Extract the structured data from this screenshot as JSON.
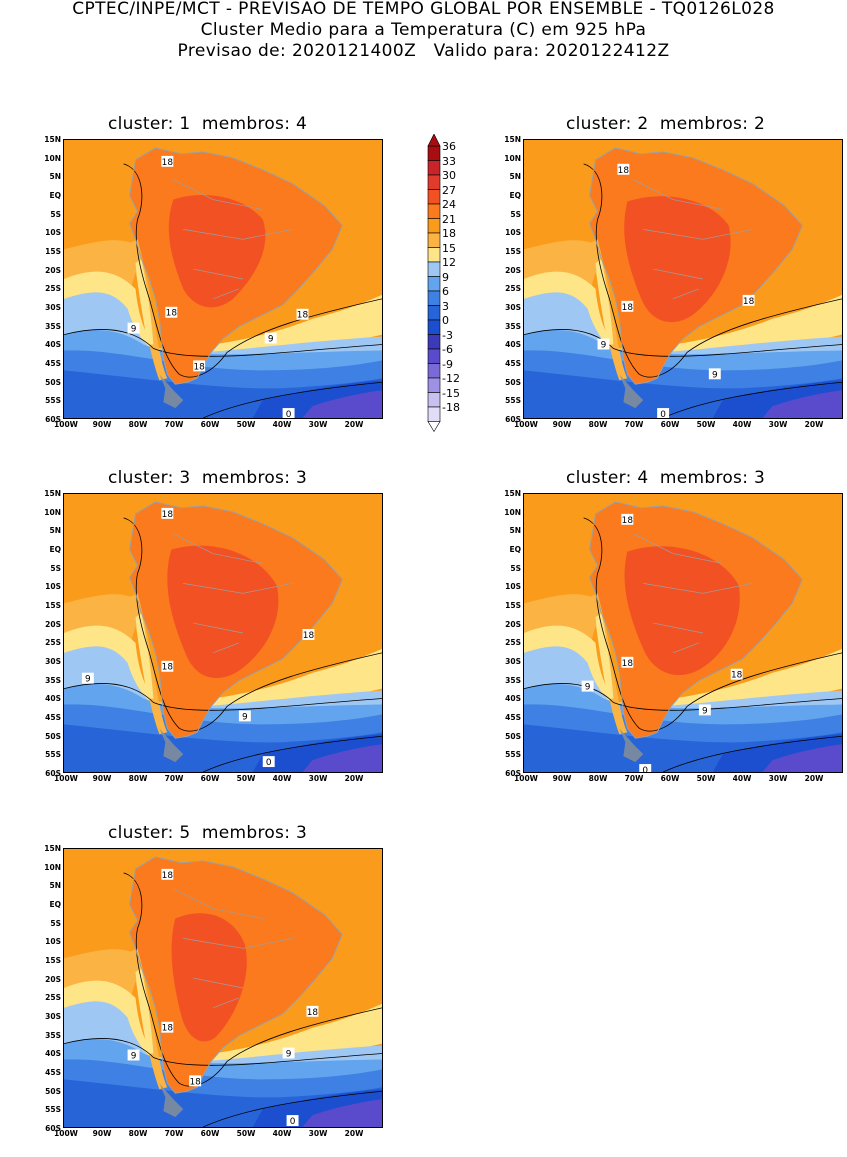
{
  "header": {
    "line1": "CPTEC/INPE/MCT - PREVISAO DE TEMPO GLOBAL POR ENSEMBLE - TQ0126L028",
    "line2": "Cluster Medio para a Temperatura (C) em 925 hPa",
    "line3": "Previsao de: 2020121400Z   Valido para: 2020122412Z"
  },
  "panels": [
    {
      "title": "cluster: 1  membros: 4",
      "contour_labels": [
        "18",
        "18",
        "18",
        "9",
        "9",
        "18",
        "0"
      ]
    },
    {
      "title": "cluster: 2  membros: 2",
      "contour_labels": [
        "18",
        "18",
        "18",
        "9",
        "9",
        "0"
      ]
    },
    {
      "title": "cluster: 3  membros: 3",
      "contour_labels": [
        "18",
        "18",
        "18",
        "9",
        "9",
        "0"
      ]
    },
    {
      "title": "cluster: 4  membros: 3",
      "contour_labels": [
        "18",
        "18",
        "18",
        "9",
        "9",
        "0"
      ]
    },
    {
      "title": "cluster: 5  membros: 3",
      "contour_labels": [
        "18",
        "18",
        "18",
        "9",
        "9",
        "18",
        "0"
      ]
    }
  ],
  "y_ticks": [
    "15N",
    "10N",
    "5N",
    "EQ",
    "5S",
    "10S",
    "15S",
    "20S",
    "25S",
    "30S",
    "35S",
    "40S",
    "45S",
    "50S",
    "55S",
    "60S"
  ],
  "x_ticks": [
    "100W",
    "90W",
    "80W",
    "70W",
    "60W",
    "50W",
    "40W",
    "30W",
    "20W"
  ],
  "colorbar": {
    "levels": [
      "36",
      "33",
      "30",
      "27",
      "24",
      "21",
      "18",
      "15",
      "12",
      "9",
      "6",
      "3",
      "0",
      "-3",
      "-6",
      "-9",
      "-12",
      "-15",
      "-18"
    ],
    "colors": [
      "#a80d12",
      "#c8252a",
      "#e03b2c",
      "#f25223",
      "#fa7a1d",
      "#fb9b1c",
      "#fbb443",
      "#fde588",
      "#9ec7f4",
      "#63a4ee",
      "#3f80e4",
      "#2664d8",
      "#1c4fd0",
      "#3c3ab9",
      "#5a4bcc",
      "#7a6ad8",
      "#9d91e6",
      "#c7c0f0",
      "#e2dcf8"
    ]
  },
  "palette": {
    "land_hot": "#f25223",
    "land_warm": "#fa7a1d",
    "tropical_ocean": "#fb9b1c",
    "orange_light": "#fbb443",
    "yellow": "#fde588",
    "cool_blue": "#9ec7f4",
    "mid_blue": "#63a4ee",
    "blue": "#3f80e4",
    "deep_blue": "#2664d8",
    "navy": "#1c4fd0",
    "purple": "#5a4bcc",
    "coastline": "#9aa0a6"
  }
}
